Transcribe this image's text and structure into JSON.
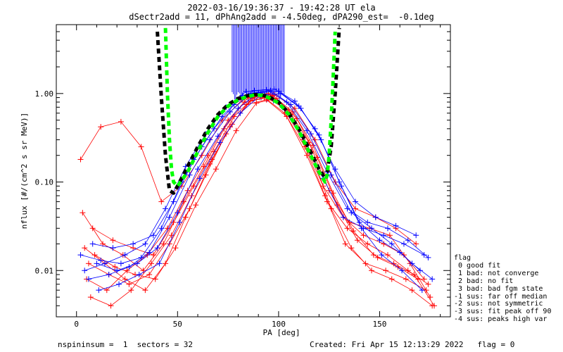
{
  "header": {
    "title_line1": "2022-03-16/19:36:37 - 19:42:28 UT ela",
    "title_line2": "dSectr2add = 11, dPhAng2add = -4.50deg, dPA290_est=  -0.1deg"
  },
  "footer": {
    "left": "nspininsum =  1  sectors = 32",
    "right": "Created: Fri Apr 15 12:13:29 2022   flag = 0"
  },
  "legend": {
    "title": "flag",
    "items": [
      " 0 good fit",
      " 1 bad: not converge",
      " 2 bad: no fit",
      " 3 bad: bad fgm state",
      "-1 sus: far off median",
      "-2 sus: not symmetric",
      "-3 sus: fit peak off 90",
      "-4 sus: peaks high var"
    ]
  },
  "chart_data": {
    "type": "scatter",
    "xlabel": "PA [deg]",
    "ylabel": "nflux [#/(cm^2 s sr MeV)]",
    "xlim": [
      -10,
      185
    ],
    "ylim": [
      0.003,
      6.0
    ],
    "yscale": "log",
    "xticks": [
      0,
      50,
      100,
      150
    ],
    "xtick_labels": [
      "0",
      "50",
      "100",
      "150"
    ],
    "yticks": [
      0.01,
      0.1,
      1.0
    ],
    "ytick_labels": [
      "0.01",
      "0.10",
      "1.00"
    ],
    "colors": {
      "red": "#ff0000",
      "blue": "#0000ff",
      "fit_black": "#000000",
      "fit_green": "#00ff00"
    },
    "series": [
      {
        "color": "red",
        "x": [
          2,
          12,
          22,
          32,
          42,
          52,
          62,
          72,
          82,
          92,
          102,
          112,
          122,
          132,
          142,
          152,
          162,
          172
        ],
        "y": [
          0.18,
          0.42,
          0.48,
          0.25,
          0.06,
          0.09,
          0.2,
          0.5,
          0.85,
          0.95,
          0.7,
          0.3,
          0.09,
          0.04,
          0.025,
          0.02,
          0.015,
          0.008
        ]
      },
      {
        "color": "red",
        "x": [
          3,
          13,
          23,
          33,
          43,
          53,
          63,
          73,
          83,
          93,
          103,
          113,
          123,
          133,
          143,
          153,
          163,
          173
        ],
        "y": [
          0.045,
          0.02,
          0.015,
          0.01,
          0.02,
          0.06,
          0.15,
          0.4,
          0.8,
          0.9,
          0.6,
          0.25,
          0.07,
          0.02,
          0.012,
          0.01,
          0.008,
          0.006
        ]
      },
      {
        "color": "red",
        "x": [
          4,
          14,
          24,
          34,
          44,
          54,
          64,
          74,
          84,
          94,
          104,
          114,
          124,
          134,
          144,
          154,
          164,
          174
        ],
        "y": [
          0.018,
          0.012,
          0.008,
          0.006,
          0.012,
          0.04,
          0.12,
          0.35,
          0.75,
          0.85,
          0.55,
          0.2,
          0.06,
          0.03,
          0.02,
          0.015,
          0.01,
          0.007
        ]
      },
      {
        "color": "red",
        "x": [
          5,
          15,
          25,
          35,
          45,
          55,
          65,
          75,
          85,
          95,
          105,
          115,
          125,
          135,
          145,
          155,
          165,
          175
        ],
        "y": [
          0.008,
          0.006,
          0.01,
          0.015,
          0.03,
          0.08,
          0.2,
          0.5,
          0.9,
          1.0,
          0.65,
          0.28,
          0.08,
          0.035,
          0.03,
          0.025,
          0.012,
          0.005
        ]
      },
      {
        "color": "red",
        "x": [
          6,
          16,
          26,
          36,
          46,
          56,
          66,
          76,
          86,
          96,
          106,
          116,
          126,
          136,
          146,
          156,
          166,
          176
        ],
        "y": [
          0.012,
          0.009,
          0.007,
          0.009,
          0.02,
          0.05,
          0.16,
          0.42,
          0.82,
          0.92,
          0.58,
          0.22,
          0.05,
          0.018,
          0.01,
          0.008,
          0.006,
          0.004
        ]
      },
      {
        "color": "red",
        "x": [
          7,
          17,
          27,
          37,
          47,
          57,
          67,
          77,
          87,
          97,
          107,
          117,
          127,
          137,
          147,
          157,
          167,
          177
        ],
        "y": [
          0.005,
          0.004,
          0.006,
          0.012,
          0.025,
          0.07,
          0.18,
          0.45,
          0.88,
          0.95,
          0.62,
          0.26,
          0.075,
          0.028,
          0.015,
          0.012,
          0.009,
          0.004
        ]
      },
      {
        "color": "red",
        "x": [
          8,
          18,
          28,
          38,
          48,
          58,
          68,
          78,
          88,
          98,
          108,
          118,
          128,
          138,
          148,
          158,
          168
        ],
        "y": [
          0.03,
          0.022,
          0.018,
          0.015,
          0.035,
          0.09,
          0.22,
          0.55,
          0.92,
          0.98,
          0.68,
          0.3,
          0.1,
          0.05,
          0.04,
          0.03,
          0.02
        ]
      },
      {
        "color": "red",
        "x": [
          9,
          19,
          29,
          39,
          49,
          59,
          69,
          79,
          89,
          99,
          109,
          119,
          129,
          139,
          149,
          159,
          169
        ],
        "y": [
          0.015,
          0.011,
          0.009,
          0.008,
          0.018,
          0.055,
          0.14,
          0.38,
          0.78,
          0.88,
          0.52,
          0.19,
          0.055,
          0.022,
          0.014,
          0.011,
          0.008
        ]
      },
      {
        "color": "blue",
        "x": [
          2,
          12,
          22,
          32,
          42,
          52,
          62,
          72,
          82,
          92,
          102,
          112,
          122,
          132,
          142,
          152,
          162,
          172
        ],
        "y": [
          0.015,
          0.013,
          0.012,
          0.014,
          0.03,
          0.1,
          0.25,
          0.55,
          0.95,
          1.05,
          0.7,
          0.32,
          0.11,
          0.04,
          0.03,
          0.025,
          0.02,
          0.015
        ]
      },
      {
        "color": "blue",
        "x": [
          4,
          14,
          24,
          34,
          44,
          54,
          64,
          74,
          84,
          94,
          104,
          114,
          124,
          134,
          144,
          154,
          164,
          174
        ],
        "y": [
          0.01,
          0.012,
          0.015,
          0.02,
          0.05,
          0.15,
          0.35,
          0.7,
          1.05,
          1.1,
          0.8,
          0.38,
          0.13,
          0.05,
          0.035,
          0.03,
          0.022,
          0.014
        ]
      },
      {
        "color": "blue",
        "x": [
          6,
          16,
          26,
          36,
          46,
          56,
          66,
          76,
          86,
          96,
          106,
          116,
          126,
          136,
          146,
          156,
          166,
          176
        ],
        "y": [
          0.008,
          0.009,
          0.011,
          0.016,
          0.04,
          0.12,
          0.3,
          0.62,
          1.0,
          1.08,
          0.75,
          0.35,
          0.12,
          0.045,
          0.03,
          0.02,
          0.012,
          0.008
        ]
      },
      {
        "color": "blue",
        "x": [
          8,
          18,
          28,
          38,
          48,
          58,
          68,
          78,
          88,
          98,
          108,
          118,
          128,
          138,
          148,
          158,
          168
        ],
        "y": [
          0.02,
          0.018,
          0.02,
          0.025,
          0.06,
          0.18,
          0.4,
          0.75,
          1.08,
          1.12,
          0.82,
          0.4,
          0.14,
          0.06,
          0.04,
          0.032,
          0.025
        ]
      },
      {
        "color": "blue",
        "x": [
          10,
          20,
          30,
          40,
          50,
          60,
          70,
          80,
          90,
          100,
          110,
          120,
          130,
          140,
          150,
          160,
          170
        ],
        "y": [
          0.012,
          0.01,
          0.012,
          0.018,
          0.045,
          0.14,
          0.33,
          0.68,
          1.02,
          1.06,
          0.72,
          0.34,
          0.1,
          0.035,
          0.022,
          0.016,
          0.01
        ]
      },
      {
        "color": "blue",
        "x": [
          11,
          21,
          31,
          41,
          51,
          61,
          71,
          81,
          91,
          101,
          111,
          121,
          131,
          141,
          151,
          161,
          171
        ],
        "y": [
          0.006,
          0.007,
          0.009,
          0.012,
          0.035,
          0.11,
          0.28,
          0.6,
          0.96,
          1.0,
          0.68,
          0.3,
          0.09,
          0.03,
          0.015,
          0.01,
          0.006
        ]
      }
    ],
    "fit_curves": [
      {
        "color": "fit_black",
        "x": [
          40,
          42,
          44,
          46,
          48,
          50,
          55,
          60,
          65,
          70,
          75,
          80,
          85,
          88,
          90,
          92,
          95,
          100,
          105,
          110,
          115,
          120,
          122,
          124,
          126,
          128,
          130
        ],
        "y": [
          5.0,
          0.9,
          0.2,
          0.08,
          0.075,
          0.09,
          0.15,
          0.25,
          0.4,
          0.58,
          0.75,
          0.88,
          0.95,
          0.97,
          0.97,
          0.96,
          0.92,
          0.8,
          0.6,
          0.4,
          0.24,
          0.14,
          0.12,
          0.13,
          0.25,
          1.0,
          5.5
        ]
      },
      {
        "color": "fit_green",
        "x": [
          44,
          45,
          46,
          47,
          48,
          50,
          55,
          60,
          65,
          70,
          75,
          80,
          85,
          88,
          90,
          92,
          95,
          100,
          105,
          110,
          115,
          120,
          123,
          124,
          125,
          126,
          127,
          128
        ],
        "y": [
          5.5,
          1.0,
          0.3,
          0.14,
          0.1,
          0.09,
          0.13,
          0.22,
          0.36,
          0.55,
          0.72,
          0.85,
          0.93,
          0.96,
          0.96,
          0.95,
          0.9,
          0.78,
          0.58,
          0.38,
          0.22,
          0.13,
          0.1,
          0.12,
          0.2,
          0.5,
          1.5,
          5.0
        ]
      }
    ],
    "errorbar_cluster": {
      "color": "blue",
      "x_from": 77,
      "x_to": 103,
      "y_top": 6.0,
      "y_bottom": 0.9
    }
  }
}
